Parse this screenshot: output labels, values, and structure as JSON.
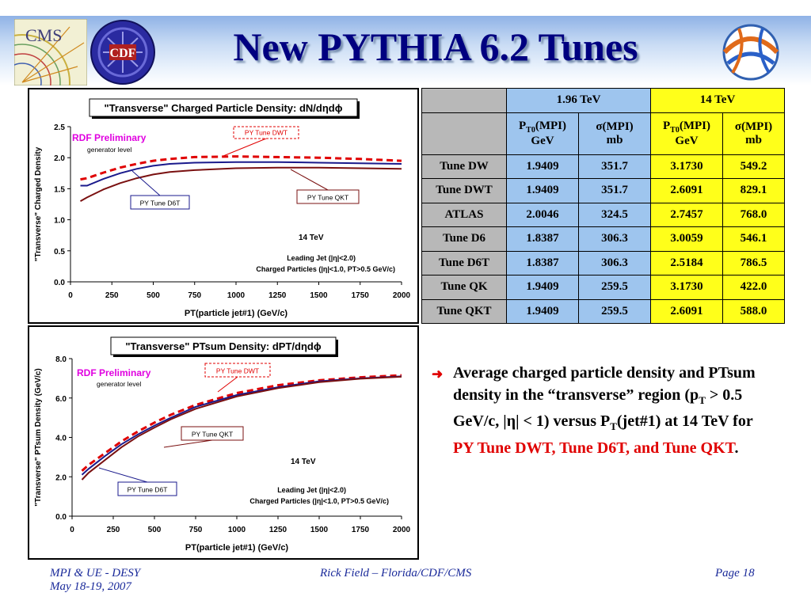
{
  "slide": {
    "title": "New PYTHIA 6.2 Tunes",
    "logos": {
      "cms": "CMS",
      "cdf": "CDF"
    }
  },
  "table": {
    "header_groups": [
      "1.96 TeV",
      "14 TeV"
    ],
    "subheaders": [
      {
        "sym": "P",
        "sub": "T0",
        "rest": "(MPI)",
        "unit": "GeV"
      },
      {
        "sym": "σ",
        "sub": "",
        "rest": "(MPI)",
        "unit": "mb"
      },
      {
        "sym": "P",
        "sub": "T0",
        "rest": "(MPI)",
        "unit": "GeV"
      },
      {
        "sym": "σ",
        "sub": "",
        "rest": "(MPI)",
        "unit": "mb"
      }
    ],
    "rows": [
      {
        "name": "Tune DW",
        "values": [
          "1.9409",
          "351.7",
          "3.1730",
          "549.2"
        ]
      },
      {
        "name": "Tune DWT",
        "values": [
          "1.9409",
          "351.7",
          "2.6091",
          "829.1"
        ]
      },
      {
        "name": "ATLAS",
        "values": [
          "2.0046",
          "324.5",
          "2.7457",
          "768.0"
        ]
      },
      {
        "name": "Tune D6",
        "values": [
          "1.8387",
          "306.3",
          "3.0059",
          "546.1"
        ]
      },
      {
        "name": "Tune D6T",
        "values": [
          "1.8387",
          "306.3",
          "2.5184",
          "786.5"
        ]
      },
      {
        "name": "Tune QK",
        "values": [
          "1.9409",
          "259.5",
          "3.1730",
          "422.0"
        ]
      },
      {
        "name": "Tune QKT",
        "values": [
          "1.9409",
          "259.5",
          "2.6091",
          "588.0"
        ]
      }
    ]
  },
  "bullet": {
    "text_a": "Average charged particle density and PTsum density in the “transverse” region (p",
    "sub_t1": "T",
    "text_b": " > 0.5 GeV/c, |η| < 1) versus P",
    "sub_t2": "T",
    "text_c": "(jet#1) at 14 TeV for ",
    "highlight": "PY Tune DWT, Tune D6T, and Tune QKT",
    "text_d": "."
  },
  "footer": {
    "left_line1": "MPI & UE - DESY",
    "left_line2": "May 18-19, 2007",
    "center": "Rick Field – Florida/CDF/CMS",
    "right": "Page 18"
  },
  "chart_data": [
    {
      "type": "line",
      "title": "\"Transverse\" Charged Particle Density: dN/dηdϕ",
      "xlabel": "PT(particle jet#1)  (GeV/c)",
      "ylabel": "\"Transverse\" Charged Density",
      "xlim": [
        0,
        2000
      ],
      "ylim": [
        0,
        2.5
      ],
      "x_ticks": [
        0,
        250,
        500,
        750,
        1000,
        1250,
        1500,
        1750,
        2000
      ],
      "y_ticks": [
        0.0,
        0.5,
        1.0,
        1.5,
        2.0,
        2.5
      ],
      "y_tick_labels": [
        "0.0",
        "0.5",
        "1.0",
        "1.5",
        "2.0",
        "2.5"
      ],
      "grid": false,
      "annotations": {
        "preliminary": "RDF Preliminary",
        "generator": "generator level",
        "energy": "14 TeV",
        "cut1": "Leading Jet (|η|<2.0)",
        "cut2": "Charged Particles (|η|<1.0, PT>0.5 GeV/c)"
      },
      "series": [
        {
          "name": "PY Tune DWT",
          "color": "#e00000",
          "style": "dashed",
          "x": [
            60,
            100,
            200,
            300,
            400,
            500,
            600,
            750,
            1000,
            1250,
            1500,
            1750,
            2000
          ],
          "y": [
            1.65,
            1.67,
            1.76,
            1.84,
            1.9,
            1.95,
            1.98,
            2.01,
            2.02,
            2.01,
            2.0,
            1.98,
            1.95
          ]
        },
        {
          "name": "PY Tune D6T",
          "color": "#1a1a8c",
          "style": "solid",
          "x": [
            60,
            100,
            200,
            300,
            400,
            500,
            600,
            750,
            1000,
            1250,
            1500,
            1750,
            2000
          ],
          "y": [
            1.55,
            1.55,
            1.66,
            1.75,
            1.82,
            1.87,
            1.9,
            1.92,
            1.93,
            1.93,
            1.92,
            1.91,
            1.9
          ]
        },
        {
          "name": "PY Tune QKT",
          "color": "#7a1010",
          "style": "solid",
          "x": [
            60,
            100,
            200,
            300,
            400,
            500,
            600,
            750,
            1000,
            1250,
            1500,
            1750,
            2000
          ],
          "y": [
            1.3,
            1.36,
            1.49,
            1.59,
            1.67,
            1.73,
            1.77,
            1.8,
            1.83,
            1.84,
            1.84,
            1.83,
            1.82
          ]
        }
      ]
    },
    {
      "type": "line",
      "title": "\"Transverse\" PTsum Density: dPT/dηdϕ",
      "xlabel": "PT(particle jet#1)   (GeV/c)",
      "ylabel": "\"Transverse\" PTsum Density (GeV/c)",
      "xlim": [
        0,
        2000
      ],
      "ylim": [
        0,
        8
      ],
      "x_ticks": [
        0,
        250,
        500,
        750,
        1000,
        1250,
        1500,
        1750,
        2000
      ],
      "y_ticks": [
        0,
        2,
        4,
        6,
        8
      ],
      "y_tick_labels": [
        "0.0",
        "2.0",
        "4.0",
        "6.0",
        "8.0"
      ],
      "grid": false,
      "annotations": {
        "preliminary": "RDF Preliminary",
        "generator": "generator level",
        "energy": "14 TeV",
        "cut1": "Leading Jet (|η|<2.0)",
        "cut2": "Charged Particles (|η|<1.0, PT>0.5 GeV/c)"
      },
      "series": [
        {
          "name": "PY Tune DWT",
          "color": "#e00000",
          "style": "dashed",
          "x": [
            60,
            100,
            200,
            300,
            400,
            500,
            600,
            750,
            1000,
            1250,
            1500,
            1750,
            2000
          ],
          "y": [
            2.3,
            2.6,
            3.2,
            3.8,
            4.3,
            4.75,
            5.15,
            5.65,
            6.25,
            6.65,
            6.9,
            7.05,
            7.15
          ]
        },
        {
          "name": "PY Tune D6T",
          "color": "#1a1a8c",
          "style": "solid",
          "x": [
            60,
            100,
            200,
            300,
            400,
            500,
            600,
            750,
            1000,
            1250,
            1500,
            1750,
            2000
          ],
          "y": [
            2.1,
            2.4,
            3.05,
            3.65,
            4.15,
            4.6,
            5.0,
            5.55,
            6.15,
            6.55,
            6.85,
            7.0,
            7.1
          ]
        },
        {
          "name": "PY Tune QKT",
          "color": "#7a1010",
          "style": "solid",
          "x": [
            60,
            100,
            200,
            300,
            400,
            500,
            600,
            750,
            1000,
            1250,
            1500,
            1750,
            2000
          ],
          "y": [
            1.85,
            2.2,
            2.85,
            3.5,
            4.05,
            4.5,
            4.92,
            5.45,
            6.08,
            6.5,
            6.8,
            6.98,
            7.08
          ]
        }
      ]
    }
  ]
}
